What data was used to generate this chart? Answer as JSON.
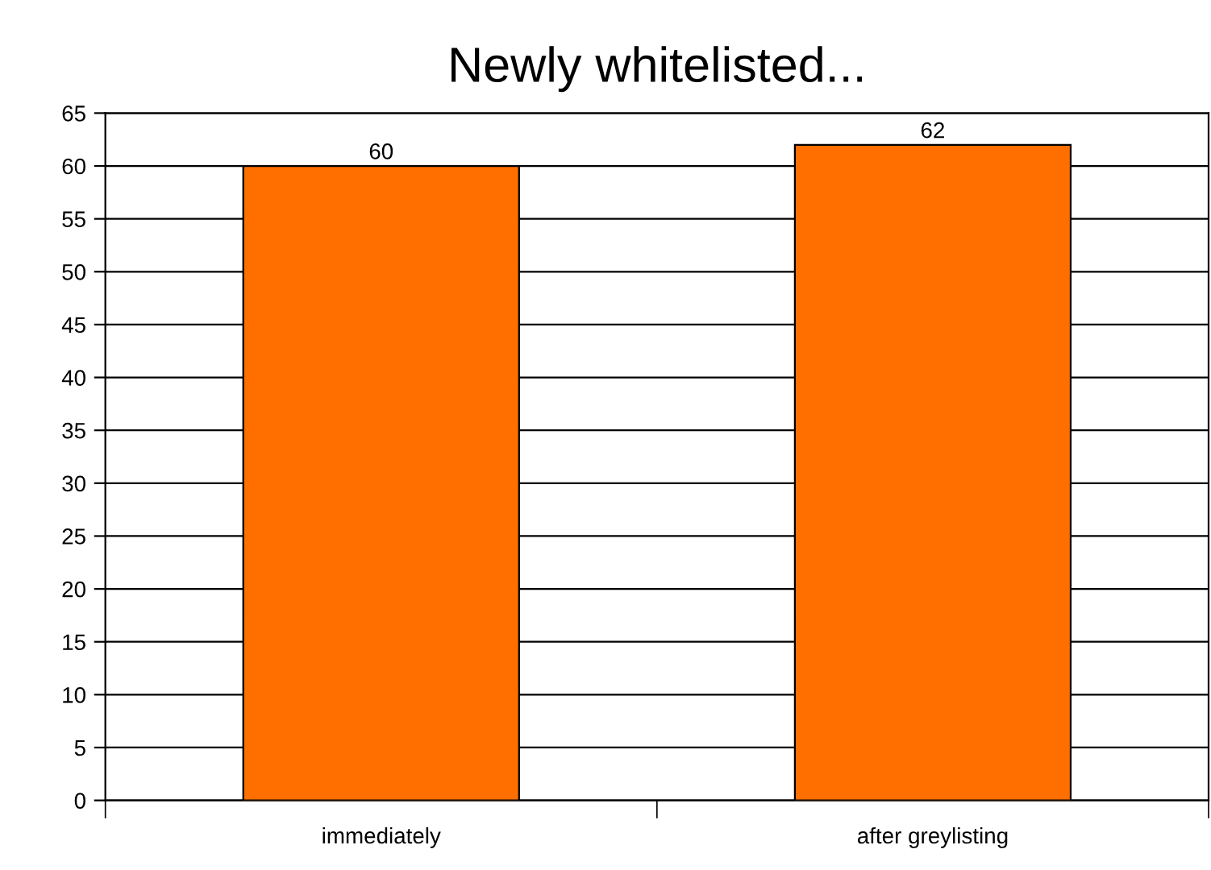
{
  "chart_data": {
    "type": "bar",
    "title": "Newly whitelisted...",
    "categories": [
      "immediately",
      "after greylisting"
    ],
    "values": [
      60,
      62
    ],
    "color": "#ff6f00",
    "ylim": [
      0,
      65
    ],
    "yticks": [
      0,
      5,
      10,
      15,
      20,
      25,
      30,
      35,
      40,
      45,
      50,
      55,
      60,
      65
    ],
    "grid": "y",
    "data_labels": true,
    "legend": false
  }
}
